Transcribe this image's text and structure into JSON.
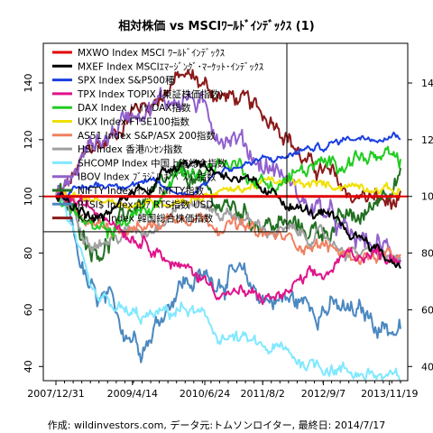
{
  "chart_data": {
    "type": "line",
    "title": "相対株価 vs MSCIﾜｰﾙﾄﾞｲﾝﾃﾞｯｸｽ (1)",
    "footer": "作成: wildinvestors.com, データ元:トムソンロイター, 最終日: 2014/7/17",
    "x_tick_labels": [
      "2007/12/31",
      "2009/4/14",
      "2010/6/24",
      "2011/8/2",
      "2012/9/7",
      "2013/11/19"
    ],
    "x_tick_positions": [
      0,
      0.222,
      0.432,
      0.6,
      0.776,
      0.968
    ],
    "ylim": [
      35,
      154
    ],
    "y_ticks": [
      40,
      60,
      80,
      100,
      120,
      140
    ],
    "reference_line": 100,
    "legend_position": "top-left",
    "series": [
      {
        "name": "MXWO Index MSCI ﾜｰﾙﾄﾞｲﾝﾃﾞｯｸｽ",
        "color": "#e00000",
        "width": 3,
        "noise": 0,
        "values": [
          100,
          100,
          100,
          100,
          100,
          100,
          100,
          100,
          100
        ]
      },
      {
        "name": "MXEF Index MSCIｴﾏｰｼﾞﾝｸﾞ･ﾏｰｹｯﾄ･ｲﾝﾃﾞｯｸｽ",
        "color": "#000000",
        "width": 2,
        "noise": 1.6,
        "values": [
          100,
          92,
          103,
          113,
          108,
          100,
          94,
          86,
          76
        ]
      },
      {
        "name": "SPX Index S&P500種",
        "color": "#1a3ee0",
        "width": 2,
        "noise": 1.0,
        "values": [
          100,
          104,
          105,
          101,
          110,
          113,
          117,
          121,
          122
        ]
      },
      {
        "name": "TPX Index TOPIX (東証株価指数)",
        "color": "#e0138a",
        "width": 2,
        "noise": 1.8,
        "values": [
          100,
          95,
          85,
          74,
          66,
          64,
          71,
          80,
          79
        ]
      },
      {
        "name": "DAX Index ﾄﾞｲﾂ DAX指数",
        "color": "#22cc22",
        "width": 2,
        "noise": 2.2,
        "values": [
          100,
          87,
          94,
          108,
          112,
          104,
          110,
          114,
          112
        ]
      },
      {
        "name": "UKX Index FTSE100指数",
        "color": "#f0e000",
        "width": 2,
        "noise": 1.2,
        "values": [
          100,
          99,
          97,
          99,
          102,
          105,
          104,
          104,
          102
        ]
      },
      {
        "name": "AS51 Index S&P/ASX 200指数",
        "color": "#f08060",
        "width": 2,
        "noise": 1.8,
        "values": [
          100,
          90,
          89,
          94,
          90,
          86,
          83,
          79,
          78
        ]
      },
      {
        "name": "HSI Index 香港ﾊﾝｾﾝ指数",
        "color": "#a0a0a0",
        "width": 2,
        "noise": 1.8,
        "values": [
          100,
          84,
          88,
          98,
          94,
          88,
          86,
          80,
          78
        ]
      },
      {
        "name": "SHCOMP Index 中国上海総合指数",
        "color": "#80e8ff",
        "width": 2,
        "noise": 2.0,
        "values": [
          100,
          62,
          57,
          60,
          50,
          46,
          41,
          38,
          35
        ]
      },
      {
        "name": "IBOV Index ﾌﾞﾗｼﾞﾙ ﾎﾞﾍﾞｽﾊﾟ指数",
        "color": "#9060cc",
        "width": 2,
        "noise": 3.0,
        "values": [
          100,
          120,
          132,
          135,
          122,
          110,
          96,
          84,
          80
        ]
      },
      {
        "name": "NIFTY Index ｲﾝﾄﾞ NIFTY指数",
        "color": "#207020",
        "width": 2,
        "noise": 2.8,
        "values": [
          100,
          82,
          98,
          107,
          96,
          90,
          88,
          92,
          108
        ]
      },
      {
        "name": "RTSI$ Index ﾛｼｱ RTS指数 USD",
        "color": "#4a88c0",
        "width": 2,
        "noise": 3.2,
        "values": [
          100,
          62,
          50,
          70,
          72,
          64,
          62,
          58,
          53
        ]
      },
      {
        "name": "KOSPI Index 韓国総合株価指数",
        "color": "#8b1a1a",
        "width": 2,
        "noise": 2.6,
        "values": [
          100,
          118,
          132,
          142,
          135,
          128,
          110,
          100,
          97
        ]
      }
    ]
  }
}
